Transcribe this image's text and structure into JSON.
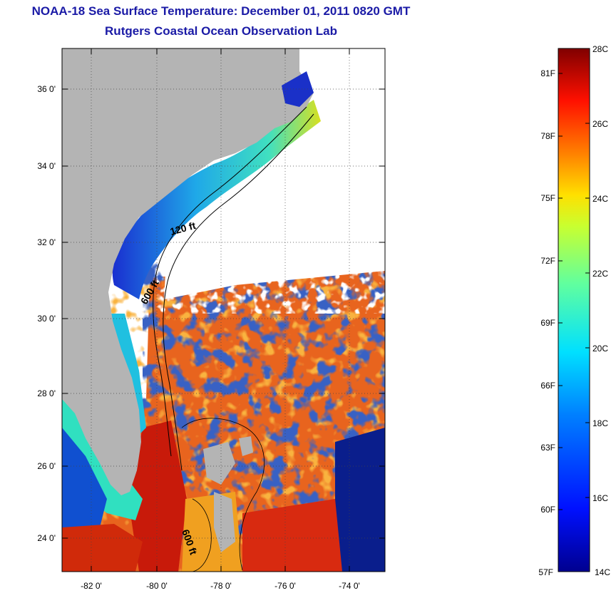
{
  "title": {
    "line1": "NOAA-18 Sea Surface Temperature:  December 01, 2011 0820 GMT",
    "line2": "Rutgers Coastal Ocean Observation Lab"
  },
  "map": {
    "lon_ticks": [
      "-82 0'",
      "-80 0'",
      "-78 0'",
      "-76 0'",
      "-74 0'"
    ],
    "lat_ticks": [
      "36 0'",
      "34 0'",
      "32 0'",
      "30 0'",
      "28 0'",
      "26 0'",
      "24 0'"
    ],
    "contour_labels": [
      "120 ft",
      "600 ft",
      "600 ft"
    ],
    "colors": {
      "land": "#b4b4b4",
      "cloud": "#ffffff",
      "cold": "#0a1e8c",
      "warm": "#d22a0a"
    }
  },
  "colorbar": {
    "celsius_labels": [
      "28C",
      "26C",
      "24C",
      "22C",
      "20C",
      "18C",
      "16C",
      "14C"
    ],
    "fahrenheit_labels": [
      "81F",
      "78F",
      "75F",
      "72F",
      "69F",
      "66F",
      "63F",
      "60F",
      "57F"
    ],
    "range_c": [
      14,
      28
    ]
  }
}
